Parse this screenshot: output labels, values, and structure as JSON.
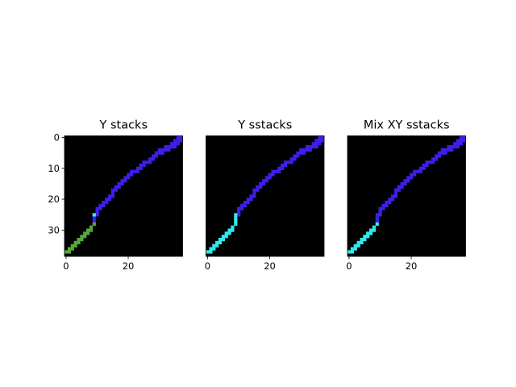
{
  "chart_data": [
    {
      "type": "heatmap",
      "title": "Y stacks",
      "xlabel": "",
      "ylabel": "",
      "grid": false,
      "xlim": [
        0,
        37
      ],
      "ylim": [
        38,
        0
      ],
      "x_ticks": [
        0,
        20
      ],
      "y_ticks": [
        0,
        10,
        20,
        30
      ],
      "background": "#000000",
      "series": [
        {
          "color": "#3d1ee8",
          "cells": [
            [
              36,
              0
            ],
            [
              37,
              0
            ],
            [
              35,
              1
            ],
            [
              36,
              1
            ],
            [
              37,
              1
            ],
            [
              34,
              2
            ],
            [
              35,
              2
            ],
            [
              36,
              2
            ],
            [
              32,
              3
            ],
            [
              33,
              3
            ],
            [
              34,
              3
            ],
            [
              35,
              3
            ],
            [
              30,
              4
            ],
            [
              31,
              4
            ],
            [
              32,
              4
            ],
            [
              33,
              4
            ],
            [
              29,
              5
            ],
            [
              30,
              5
            ],
            [
              31,
              5
            ],
            [
              28,
              6
            ],
            [
              29,
              6
            ],
            [
              27,
              7
            ],
            [
              28,
              7
            ],
            [
              25,
              8
            ],
            [
              26,
              8
            ],
            [
              27,
              8
            ],
            [
              24,
              9
            ],
            [
              25,
              9
            ],
            [
              23,
              10
            ],
            [
              24,
              10
            ],
            [
              21,
              11
            ],
            [
              22,
              11
            ],
            [
              23,
              11
            ],
            [
              20,
              12
            ],
            [
              21,
              12
            ],
            [
              19,
              13
            ],
            [
              20,
              13
            ],
            [
              18,
              14
            ],
            [
              19,
              14
            ],
            [
              17,
              15
            ],
            [
              18,
              15
            ],
            [
              16,
              16
            ],
            [
              17,
              16
            ],
            [
              15,
              17
            ],
            [
              16,
              17
            ],
            [
              15,
              18
            ],
            [
              14,
              19
            ],
            [
              15,
              19
            ],
            [
              13,
              20
            ],
            [
              14,
              20
            ],
            [
              12,
              21
            ],
            [
              13,
              21
            ],
            [
              11,
              22
            ],
            [
              12,
              22
            ],
            [
              10,
              23
            ],
            [
              11,
              23
            ],
            [
              10,
              24
            ],
            [
              9,
              25
            ],
            [
              10,
              25
            ],
            [
              9,
              26
            ],
            [
              9,
              27
            ]
          ]
        },
        {
          "color": "#55a83a",
          "cells": [
            [
              9,
              28
            ],
            [
              8,
              29
            ],
            [
              7,
              30
            ],
            [
              8,
              30
            ],
            [
              6,
              31
            ],
            [
              7,
              31
            ],
            [
              5,
              32
            ],
            [
              6,
              32
            ],
            [
              4,
              33
            ],
            [
              5,
              33
            ],
            [
              3,
              34
            ],
            [
              4,
              34
            ],
            [
              2,
              35
            ],
            [
              3,
              35
            ],
            [
              1,
              36
            ],
            [
              2,
              36
            ],
            [
              0,
              37
            ],
            [
              1,
              37
            ]
          ]
        },
        {
          "color": "#31e7f0",
          "cells": [
            [
              9,
              25
            ]
          ]
        }
      ]
    },
    {
      "type": "heatmap",
      "title": "Y sstacks",
      "xlabel": "",
      "ylabel": "",
      "grid": false,
      "xlim": [
        0,
        37
      ],
      "ylim": [
        38,
        0
      ],
      "x_ticks": [
        0,
        20
      ],
      "y_ticks": [],
      "background": "#000000",
      "series": [
        {
          "color": "#3d1ee8",
          "cells": [
            [
              36,
              0
            ],
            [
              37,
              0
            ],
            [
              35,
              1
            ],
            [
              36,
              1
            ],
            [
              37,
              1
            ],
            [
              34,
              2
            ],
            [
              35,
              2
            ],
            [
              36,
              2
            ],
            [
              32,
              3
            ],
            [
              33,
              3
            ],
            [
              34,
              3
            ],
            [
              35,
              3
            ],
            [
              30,
              4
            ],
            [
              31,
              4
            ],
            [
              32,
              4
            ],
            [
              33,
              4
            ],
            [
              29,
              5
            ],
            [
              30,
              5
            ],
            [
              31,
              5
            ],
            [
              28,
              6
            ],
            [
              29,
              6
            ],
            [
              27,
              7
            ],
            [
              28,
              7
            ],
            [
              25,
              8
            ],
            [
              26,
              8
            ],
            [
              27,
              8
            ],
            [
              24,
              9
            ],
            [
              25,
              9
            ],
            [
              23,
              10
            ],
            [
              24,
              10
            ],
            [
              21,
              11
            ],
            [
              22,
              11
            ],
            [
              23,
              11
            ],
            [
              20,
              12
            ],
            [
              21,
              12
            ],
            [
              19,
              13
            ],
            [
              20,
              13
            ],
            [
              18,
              14
            ],
            [
              19,
              14
            ],
            [
              17,
              15
            ],
            [
              18,
              15
            ],
            [
              16,
              16
            ],
            [
              17,
              16
            ],
            [
              15,
              17
            ],
            [
              16,
              17
            ],
            [
              15,
              18
            ],
            [
              14,
              19
            ],
            [
              15,
              19
            ],
            [
              13,
              20
            ],
            [
              14,
              20
            ],
            [
              12,
              21
            ],
            [
              13,
              21
            ],
            [
              11,
              22
            ],
            [
              12,
              22
            ],
            [
              10,
              23
            ],
            [
              11,
              23
            ],
            [
              10,
              24
            ],
            [
              10,
              25
            ]
          ]
        },
        {
          "color": "#31e7f0",
          "cells": [
            [
              9,
              25
            ],
            [
              9,
              26
            ],
            [
              9,
              27
            ],
            [
              9,
              28
            ],
            [
              8,
              29
            ],
            [
              7,
              30
            ],
            [
              8,
              30
            ],
            [
              6,
              31
            ],
            [
              7,
              31
            ],
            [
              5,
              32
            ],
            [
              6,
              32
            ],
            [
              4,
              33
            ],
            [
              5,
              33
            ],
            [
              3,
              34
            ],
            [
              4,
              34
            ],
            [
              2,
              35
            ],
            [
              3,
              35
            ],
            [
              1,
              36
            ],
            [
              2,
              36
            ],
            [
              0,
              37
            ],
            [
              1,
              37
            ]
          ]
        }
      ]
    },
    {
      "type": "heatmap",
      "title": "Mix XY sstacks",
      "xlabel": "",
      "ylabel": "",
      "grid": false,
      "xlim": [
        0,
        37
      ],
      "ylim": [
        38,
        0
      ],
      "x_ticks": [
        0,
        20
      ],
      "y_ticks": [],
      "background": "#000000",
      "series": [
        {
          "color": "#3d1ee8",
          "cells": [
            [
              36,
              0
            ],
            [
              37,
              0
            ],
            [
              35,
              1
            ],
            [
              36,
              1
            ],
            [
              37,
              1
            ],
            [
              34,
              2
            ],
            [
              35,
              2
            ],
            [
              36,
              2
            ],
            [
              32,
              3
            ],
            [
              33,
              3
            ],
            [
              34,
              3
            ],
            [
              35,
              3
            ],
            [
              30,
              4
            ],
            [
              31,
              4
            ],
            [
              32,
              4
            ],
            [
              33,
              4
            ],
            [
              29,
              5
            ],
            [
              30,
              5
            ],
            [
              31,
              5
            ],
            [
              28,
              6
            ],
            [
              29,
              6
            ],
            [
              27,
              7
            ],
            [
              28,
              7
            ],
            [
              25,
              8
            ],
            [
              26,
              8
            ],
            [
              27,
              8
            ],
            [
              24,
              9
            ],
            [
              25,
              9
            ],
            [
              23,
              10
            ],
            [
              24,
              10
            ],
            [
              21,
              11
            ],
            [
              22,
              11
            ],
            [
              23,
              11
            ],
            [
              20,
              12
            ],
            [
              21,
              12
            ],
            [
              19,
              13
            ],
            [
              20,
              13
            ],
            [
              18,
              14
            ],
            [
              19,
              14
            ],
            [
              17,
              15
            ],
            [
              18,
              15
            ],
            [
              16,
              16
            ],
            [
              17,
              16
            ],
            [
              15,
              17
            ],
            [
              16,
              17
            ],
            [
              15,
              18
            ],
            [
              14,
              19
            ],
            [
              15,
              19
            ],
            [
              13,
              20
            ],
            [
              14,
              20
            ],
            [
              12,
              21
            ],
            [
              13,
              21
            ],
            [
              11,
              22
            ],
            [
              12,
              22
            ],
            [
              10,
              23
            ],
            [
              11,
              23
            ],
            [
              10,
              24
            ],
            [
              9,
              25
            ],
            [
              10,
              25
            ],
            [
              9,
              26
            ],
            [
              9,
              27
            ]
          ]
        },
        {
          "color": "#31e7f0",
          "cells": [
            [
              9,
              28
            ],
            [
              8,
              29
            ],
            [
              7,
              30
            ],
            [
              8,
              30
            ],
            [
              6,
              31
            ],
            [
              7,
              31
            ],
            [
              5,
              32
            ],
            [
              6,
              32
            ],
            [
              4,
              33
            ],
            [
              5,
              33
            ],
            [
              3,
              34
            ],
            [
              4,
              34
            ],
            [
              2,
              35
            ],
            [
              3,
              35
            ],
            [
              1,
              36
            ],
            [
              2,
              36
            ],
            [
              0,
              37
            ],
            [
              1,
              37
            ]
          ]
        }
      ]
    }
  ]
}
